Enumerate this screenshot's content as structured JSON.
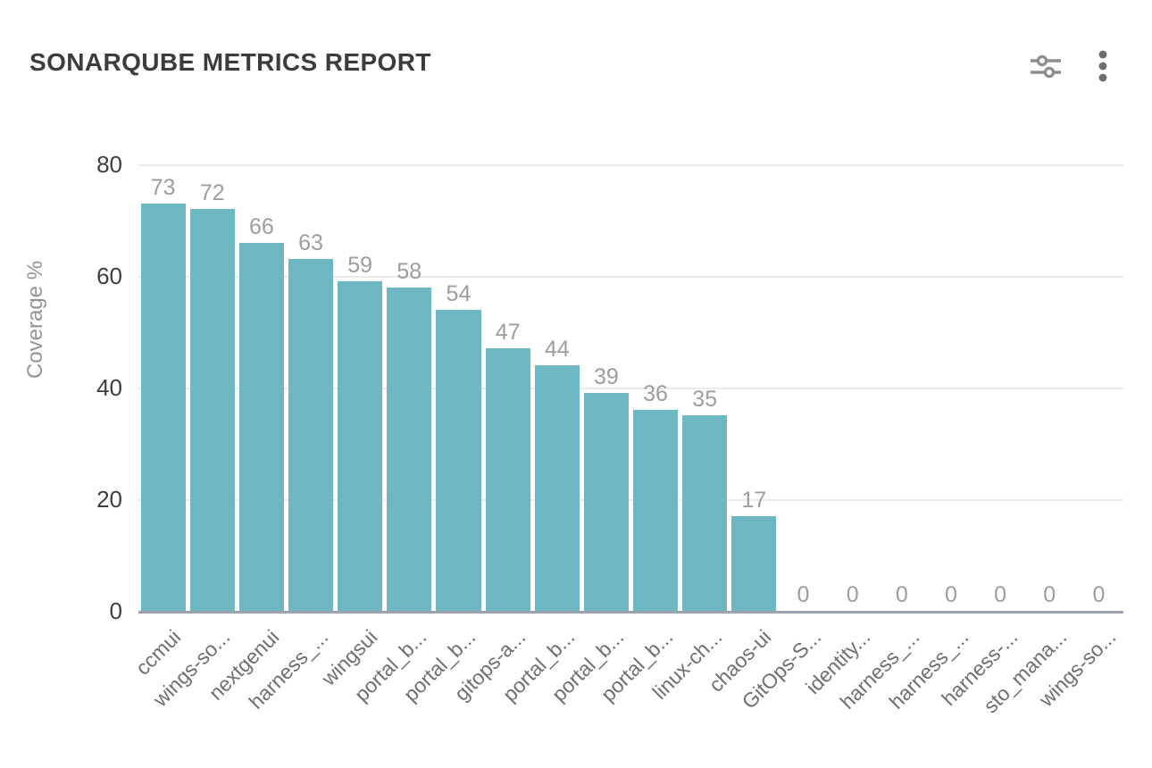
{
  "header": {
    "title": "SONARQUBE METRICS REPORT",
    "settings_button": "chart settings",
    "menu_button": "more options"
  },
  "colors": {
    "bar": "#6db8c2",
    "axis_line": "#99a1b2",
    "gridline": "#ebebeb",
    "title_text": "#3c3c3c",
    "tick_text": "#3f3f3f",
    "value_label_text": "#9d9d9d",
    "category_text": "#6f6f6f",
    "icon": "#8d8d8d"
  },
  "chart_data": {
    "type": "bar",
    "title": "SONARQUBE METRICS REPORT",
    "xlabel": "",
    "ylabel": "Coverage %",
    "ylim": [
      0,
      80
    ],
    "yticks": [
      0,
      20,
      40,
      60,
      80
    ],
    "grid": true,
    "legend": false,
    "bar_color": "#6db8c2",
    "categories": [
      "ccmui",
      "wings-so...",
      "nextgenui",
      "harness_...",
      "wingsui",
      "portal_b...",
      "portal_b...",
      "gitops-a...",
      "portal_b...",
      "portal_b...",
      "portal_b...",
      "linux-ch...",
      "chaos-ui",
      "GitOps-S...",
      "identity...",
      "harness_...",
      "harness_...",
      "harness-...",
      "sto_mana...",
      "wings-so..."
    ],
    "values": [
      73,
      72,
      66,
      63,
      59,
      58,
      54,
      47,
      44,
      39,
      36,
      35,
      17,
      0,
      0,
      0,
      0,
      0,
      0,
      0
    ]
  }
}
